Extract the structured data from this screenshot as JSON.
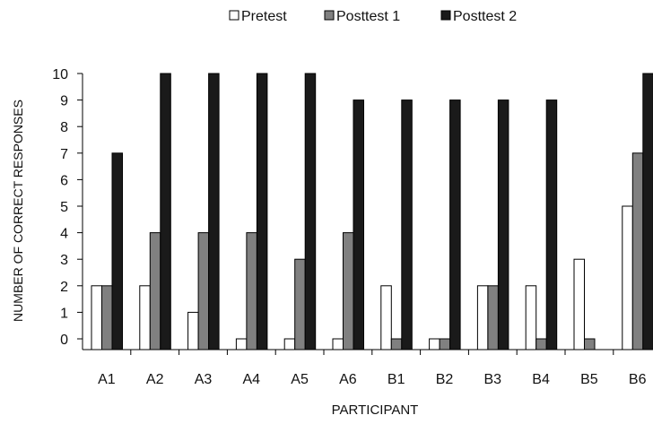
{
  "chart_data": {
    "type": "bar",
    "xlabel": "PARTICIPANT",
    "ylabel": "NUMBER OF CORRECT RESPONSES",
    "ylim": [
      0,
      10
    ],
    "yticks": [
      "0",
      "1",
      "2",
      "3",
      "4",
      "5",
      "6",
      "7",
      "8",
      "9",
      "10"
    ],
    "grid": false,
    "legend_position": "top-center",
    "categories": [
      "A1",
      "A2",
      "A3",
      "A4",
      "A5",
      "A6",
      "B1",
      "B2",
      "B3",
      "B4",
      "B5",
      "B6"
    ],
    "series": [
      {
        "name": "Pretest",
        "color": "#ffffff",
        "values": [
          2,
          2,
          1,
          0,
          0,
          0,
          2,
          0,
          2,
          2,
          3,
          5
        ]
      },
      {
        "name": "Posttest 1",
        "color": "#808080",
        "values": [
          2,
          4,
          4,
          4,
          3,
          4,
          0,
          0,
          2,
          0,
          0,
          7
        ]
      },
      {
        "name": "Posttest 2",
        "color": "#1a1a1a",
        "values": [
          7,
          10,
          10,
          10,
          10,
          9,
          9,
          9,
          9,
          9,
          null,
          10
        ]
      }
    ]
  }
}
